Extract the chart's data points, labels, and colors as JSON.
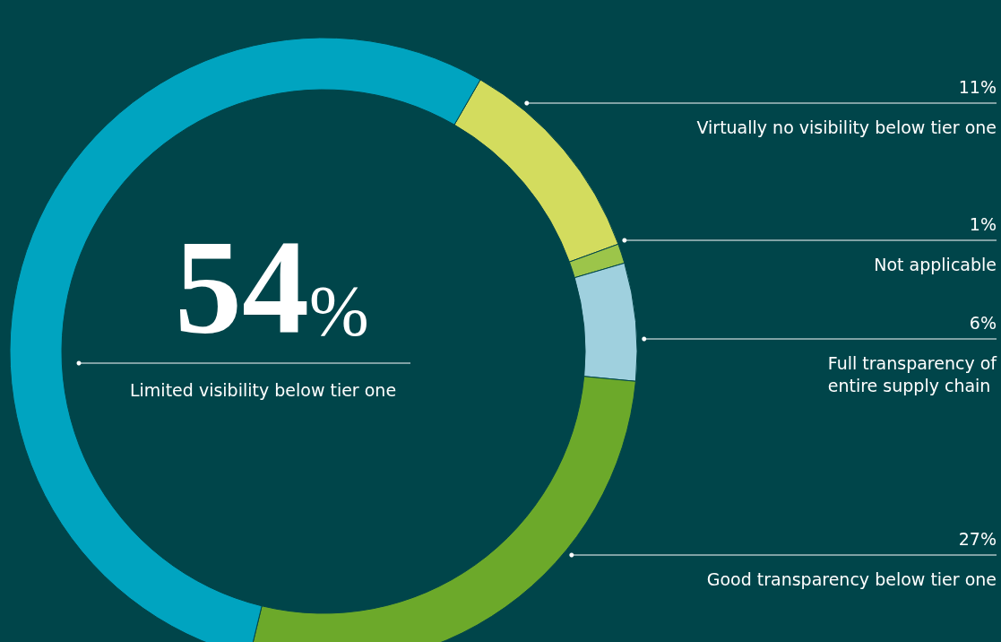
{
  "chart_data": {
    "type": "donut",
    "categories": [
      "Virtually no visibility below tier one",
      "Not applicable",
      "Full transparency of entire supply chain",
      "Good transparency below tier one",
      "Limited visibility below tier one"
    ],
    "values": [
      11,
      1,
      6,
      27,
      54
    ],
    "value_labels": [
      "11%",
      "1%",
      "6%",
      "27%",
      "54%"
    ],
    "colors": [
      "#d3dc5e",
      "#9cc54a",
      "#9fd0de",
      "#6ca92a",
      "#00a4c0"
    ],
    "legend": false
  }
}
